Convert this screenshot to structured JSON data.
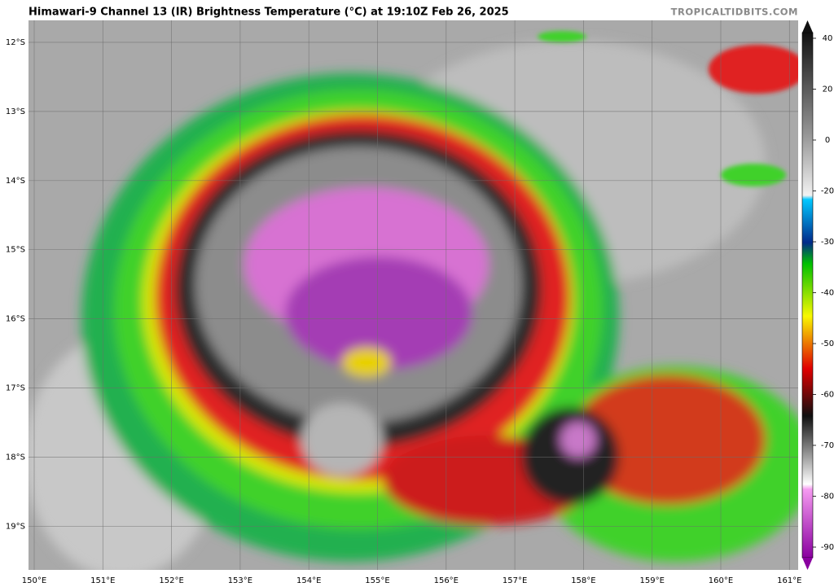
{
  "header": {
    "title": "Himawari-9 Channel 13 (IR) Brightness Temperature (°C) at 19:10Z Feb 26, 2025",
    "watermark": "TROPICALTIDBITS.COM"
  },
  "map": {
    "lat_labels": [
      "12°S",
      "13°S",
      "14°S",
      "15°S",
      "16°S",
      "17°S",
      "18°S",
      "19°S"
    ],
    "lon_labels": [
      "150°E",
      "151°E",
      "152°E",
      "153°E",
      "154°E",
      "155°E",
      "156°E",
      "157°E",
      "158°E",
      "159°E",
      "160°E",
      "161°E"
    ]
  },
  "colorbar": {
    "ticks": [
      40,
      20,
      0,
      -20,
      -30,
      -40,
      -50,
      -60,
      -70,
      -80,
      -90
    ]
  }
}
